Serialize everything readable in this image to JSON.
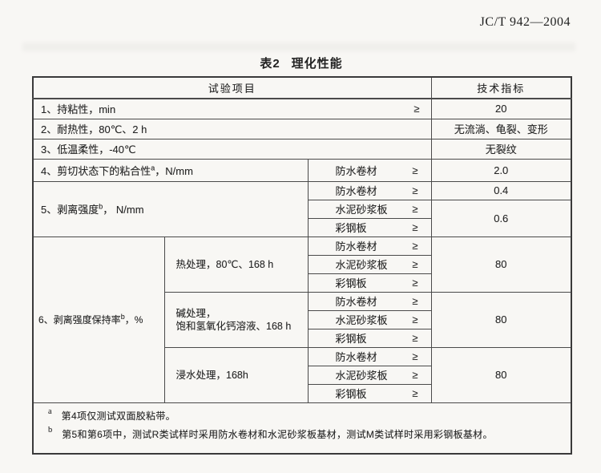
{
  "page": {
    "doc_number": "JC/T 942—2004",
    "title_prefix": "表2",
    "title_text": "理化性能"
  },
  "table": {
    "header": {
      "test_item": "试验项目",
      "tech_index": "技术指标"
    },
    "ge": "≥",
    "substrates": [
      "防水卷材",
      "水泥砂浆板",
      "彩钢板"
    ],
    "item1": {
      "label": "1、持粘性，min",
      "value": "20"
    },
    "item2": {
      "label": "2、耐热性，80℃、2 h",
      "value": "无流淌、龟裂、变形"
    },
    "item3": {
      "label": "3、低温柔性，-40℃",
      "value": "无裂纹"
    },
    "item4": {
      "label_pre": "4、剪切状态下的粘合性",
      "sup": "a",
      "label_post": "，N/mm",
      "value": "2.0"
    },
    "item5": {
      "label_pre": "5、剥离强度",
      "sup": "b",
      "label_post": "， N/mm",
      "value_row1": "0.4",
      "value_row23": "0.6"
    },
    "item6": {
      "label_pre": "6、剥离强度保持率",
      "sup": "b",
      "label_post": "，%",
      "groups": [
        {
          "condition_line1": "热处理，80℃、168 h",
          "condition_line2": "",
          "value": "80"
        },
        {
          "condition_line1": "碱处理，",
          "condition_line2": "饱和氢氧化钙溶液、168 h",
          "value": "80"
        },
        {
          "condition_line1": "浸水处理，168h",
          "condition_line2": "",
          "value": "80"
        }
      ]
    },
    "footnotes": [
      {
        "mark": "a",
        "text": "第4项仅测试双面胶粘带。"
      },
      {
        "mark": "b",
        "text": "第5和第6项中，测试R类试样时采用防水卷材和水泥砂浆板基材，测试M类试样时采用彩钢板基材。"
      }
    ]
  }
}
